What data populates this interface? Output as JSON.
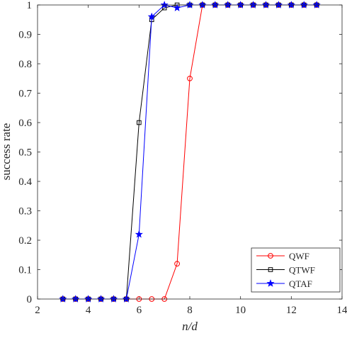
{
  "chart_data": {
    "type": "line",
    "xlabel": "n/d",
    "ylabel": "success rate",
    "xlim": [
      2,
      14
    ],
    "ylim": [
      0,
      1
    ],
    "xticks": [
      2,
      4,
      6,
      8,
      10,
      12,
      14
    ],
    "yticks": [
      0,
      0.1,
      0.2,
      0.3,
      0.4,
      0.5,
      0.6,
      0.7,
      0.8,
      0.9,
      1
    ],
    "x_tick_labels": [
      "2",
      "4",
      "6",
      "8",
      "10",
      "12",
      "14"
    ],
    "y_tick_labels": [
      "0",
      "0.1",
      "0.2",
      "0.3",
      "0.4",
      "0.5",
      "0.6",
      "0.7",
      "0.8",
      "0.9",
      "1"
    ],
    "grid": false,
    "legend_position": "bottom-right",
    "x": [
      3,
      3.5,
      4,
      4.5,
      5,
      5.5,
      6,
      6.5,
      7,
      7.5,
      8,
      8.5,
      9,
      9.5,
      10,
      10.5,
      11,
      11.5,
      12,
      12.5,
      13
    ],
    "series": [
      {
        "name": "QWF",
        "color": "#ff0000",
        "marker": "circle",
        "values": [
          0,
          0,
          0,
          0,
          0,
          0,
          0,
          0,
          0,
          0.12,
          0.75,
          1,
          1,
          1,
          1,
          1,
          1,
          1,
          1,
          1,
          1
        ]
      },
      {
        "name": "QTWF",
        "color": "#000000",
        "marker": "square",
        "values": [
          0,
          0,
          0,
          0,
          0,
          0,
          0.6,
          0.95,
          0.99,
          1,
          1,
          1,
          1,
          1,
          1,
          1,
          1,
          1,
          1,
          1,
          1
        ]
      },
      {
        "name": "QTAF",
        "color": "#0000ff",
        "marker": "star",
        "values": [
          0,
          0,
          0,
          0,
          0,
          0,
          0.22,
          0.96,
          1,
          0.99,
          1,
          1,
          1,
          1,
          1,
          1,
          1,
          1,
          1,
          1,
          1
        ]
      }
    ]
  }
}
